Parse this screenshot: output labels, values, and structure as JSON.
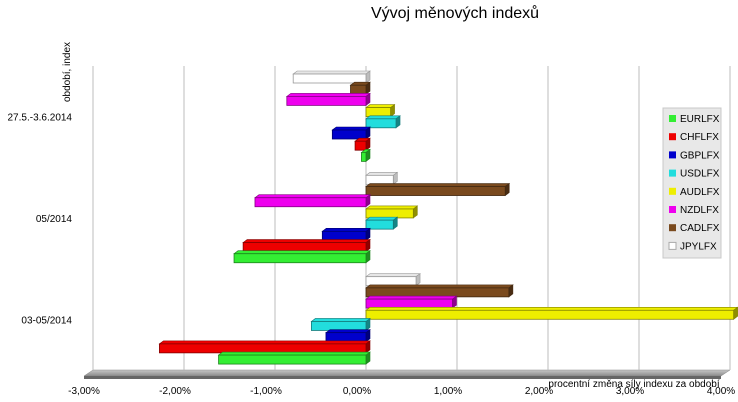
{
  "chart_data": {
    "type": "bar",
    "orientation": "horizontal",
    "title": "Vývoj měnových indexů",
    "xlabel": "procentní změna síly indexu za období",
    "ylabel": "období, index",
    "xlim": [
      -3.0,
      4.0
    ],
    "xticks": [
      "-3,00%",
      "-2,00%",
      "-1,00%",
      "0,00%",
      "1,00%",
      "2,00%",
      "3,00%",
      "4,00%"
    ],
    "categories": [
      "27.5.-3.6.2014",
      "05/2014",
      "03-05/2014"
    ],
    "grid": true,
    "legend_position": "right",
    "series": [
      {
        "name": "EURLFX",
        "color": "#33ee33",
        "values": [
          -0.05,
          -1.45,
          -1.62
        ]
      },
      {
        "name": "CHFLFX",
        "color": "#ee0000",
        "values": [
          -0.12,
          -1.35,
          -2.27
        ]
      },
      {
        "name": "GBPLFX",
        "color": "#0000cc",
        "values": [
          -0.37,
          -0.48,
          -0.44
        ]
      },
      {
        "name": "USDLFX",
        "color": "#22dddd",
        "values": [
          0.33,
          0.3,
          -0.6
        ]
      },
      {
        "name": "AUDLFX",
        "color": "#eeee00",
        "values": [
          0.27,
          0.52,
          4.04
        ]
      },
      {
        "name": "NZDLFX",
        "color": "#ee00ee",
        "values": [
          -0.87,
          -1.22,
          0.95
        ]
      },
      {
        "name": "CADLFX",
        "color": "#7a4a1e",
        "values": [
          -0.17,
          1.53,
          1.57
        ]
      },
      {
        "name": "JPYLFX",
        "color": "#ffffff",
        "values": [
          -0.8,
          0.3,
          0.55
        ]
      }
    ]
  }
}
